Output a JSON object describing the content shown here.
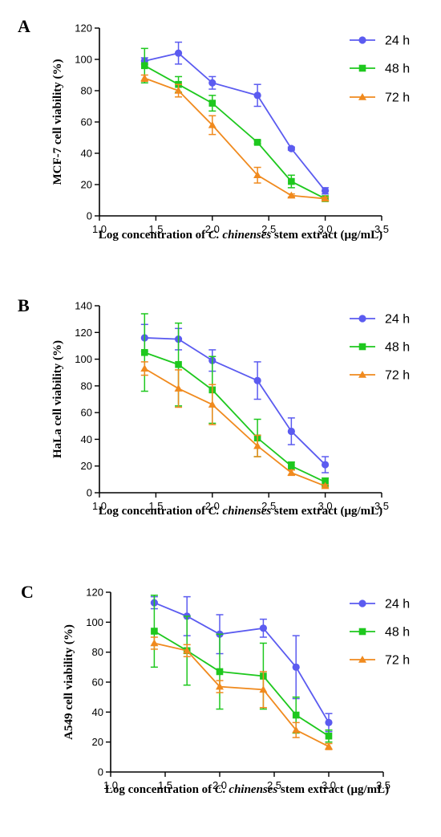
{
  "chart_data": [
    {
      "type": "line",
      "panel": "A",
      "xlabel_parts": [
        "Log concentration of ",
        "C. chinenses",
        " stem extract (μg/mL)"
      ],
      "ylabel": "MCF-7 cell viability (%)",
      "xlim": [
        1.0,
        3.5
      ],
      "ylim": [
        0,
        120
      ],
      "xticks": [
        "1.0",
        "1.5",
        "2.0",
        "2.5",
        "3.0",
        "3.5"
      ],
      "yticks": [
        "0",
        "20",
        "40",
        "60",
        "80",
        "100",
        "120"
      ],
      "legend_position": "top-right",
      "series": [
        {
          "name": "24 h",
          "color": "#5b5bf0",
          "marker": "circle",
          "x": [
            1.4,
            1.7,
            2.0,
            2.4,
            2.7,
            3.0
          ],
          "y": [
            99,
            104,
            85,
            77,
            43,
            16
          ],
          "err": [
            2,
            7,
            4,
            7,
            1,
            2
          ]
        },
        {
          "name": "48 h",
          "color": "#1ec81e",
          "marker": "square",
          "x": [
            1.4,
            1.7,
            2.0,
            2.4,
            2.7,
            3.0
          ],
          "y": [
            96,
            84,
            72,
            47,
            22,
            11
          ],
          "err": [
            11,
            5,
            5,
            1,
            4,
            1
          ]
        },
        {
          "name": "72 h",
          "color": "#f08a1e",
          "marker": "triangle",
          "x": [
            1.4,
            1.7,
            2.0,
            2.4,
            2.7,
            3.0
          ],
          "y": [
            88,
            80,
            58,
            26,
            13,
            11
          ],
          "err": [
            2,
            4,
            6,
            5,
            1,
            1
          ]
        }
      ]
    },
    {
      "type": "line",
      "panel": "B",
      "xlabel_parts": [
        "Log concentration of ",
        "C. chinenses",
        "  stem extract (μg/mL)"
      ],
      "ylabel": "HaLa cell viability (%)",
      "xlim": [
        1.0,
        3.5
      ],
      "ylim": [
        0,
        140
      ],
      "xticks": [
        "1.0",
        "1.5",
        "2.0",
        "2.5",
        "3.0",
        "3.5"
      ],
      "yticks": [
        "0",
        "20",
        "40",
        "60",
        "80",
        "100",
        "120",
        "140"
      ],
      "legend_position": "top-right",
      "series": [
        {
          "name": "24 h",
          "color": "#5b5bf0",
          "marker": "circle",
          "x": [
            1.4,
            1.7,
            2.0,
            2.4,
            2.7,
            3.0
          ],
          "y": [
            116,
            115,
            99,
            84,
            46,
            21
          ],
          "err": [
            10,
            8,
            8,
            14,
            10,
            6
          ]
        },
        {
          "name": "48 h",
          "color": "#1ec81e",
          "marker": "square",
          "x": [
            1.4,
            1.7,
            2.0,
            2.4,
            2.7,
            3.0
          ],
          "y": [
            105,
            96,
            77,
            41,
            20,
            8
          ],
          "err": [
            29,
            31,
            25,
            14,
            3,
            3
          ]
        },
        {
          "name": "72 h",
          "color": "#f08a1e",
          "marker": "triangle",
          "x": [
            1.4,
            1.7,
            2.0,
            2.4,
            2.7,
            3.0
          ],
          "y": [
            93,
            78,
            66,
            35,
            15,
            5
          ],
          "err": [
            5,
            14,
            15,
            8,
            2,
            1
          ]
        }
      ]
    },
    {
      "type": "line",
      "panel": "C",
      "xlabel_parts": [
        "Log concentration of ",
        "C. chinenses",
        "  stem extract (μg/mL)"
      ],
      "ylabel": "A549 cell viability (%)",
      "xlim": [
        1.0,
        3.5
      ],
      "ylim": [
        0,
        120
      ],
      "xticks": [
        "1.0",
        "1.5",
        "2.0",
        "2.5",
        "3.0",
        "3.5"
      ],
      "yticks": [
        "0",
        "20",
        "40",
        "60",
        "80",
        "100",
        "120"
      ],
      "legend_position": "top-right",
      "series": [
        {
          "name": "24 h",
          "color": "#5b5bf0",
          "marker": "circle",
          "x": [
            1.4,
            1.7,
            2.0,
            2.4,
            2.7,
            3.0
          ],
          "y": [
            113,
            104,
            92,
            96,
            70,
            33
          ],
          "err": [
            4,
            13,
            13,
            6,
            21,
            6
          ]
        },
        {
          "name": "48 h",
          "color": "#1ec81e",
          "marker": "square",
          "x": [
            1.4,
            1.7,
            2.0,
            2.4,
            2.7,
            3.0
          ],
          "y": [
            94,
            81,
            67,
            64,
            38,
            24
          ],
          "err": [
            24,
            23,
            25,
            22,
            12,
            4
          ]
        },
        {
          "name": "72 h",
          "color": "#f08a1e",
          "marker": "triangle",
          "x": [
            1.4,
            1.7,
            2.0,
            2.4,
            2.7,
            3.0
          ],
          "y": [
            86,
            81,
            57,
            55,
            28,
            17
          ],
          "err": [
            4,
            4,
            4,
            12,
            5,
            2
          ]
        }
      ]
    }
  ]
}
